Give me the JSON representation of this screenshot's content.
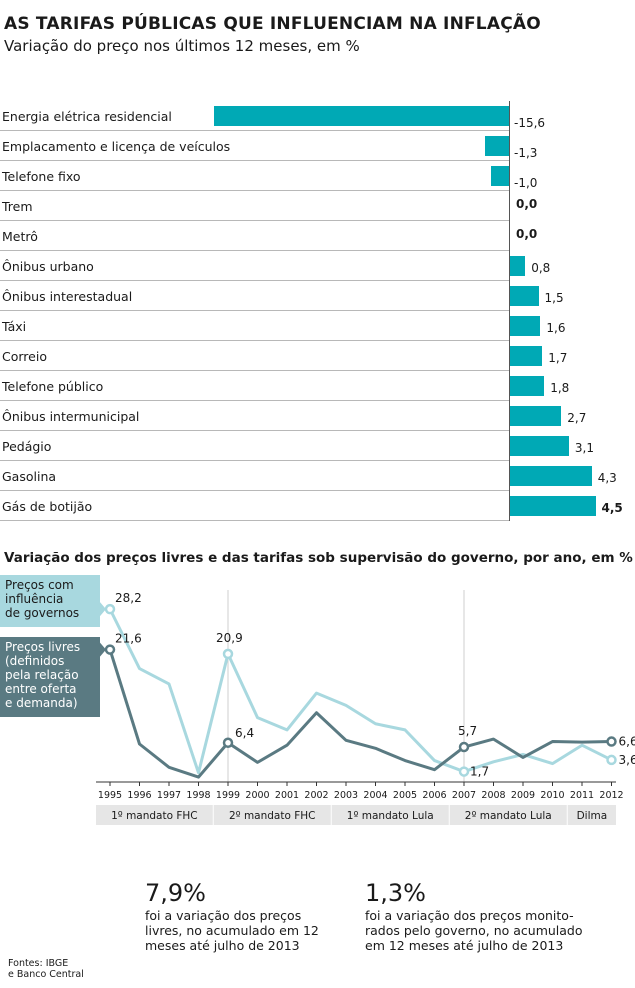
{
  "title": "AS TARIFAS PÚBLICAS QUE INFLUENCIAM NA INFLAÇÃO",
  "subtitle": "Variação do preço nos últimos 12 meses, em %",
  "chart_data": [
    {
      "type": "bar",
      "orientation": "horizontal",
      "categories": [
        "Energia elétrica residencial",
        "Emplacamento e licença de veículos",
        "Telefone fixo",
        "Trem",
        "Metrô",
        "Ônibus urbano",
        "Ônibus interestadual",
        "Táxi",
        "Correio",
        "Telefone público",
        "Ônibus intermunicipal",
        "Pedágio",
        "Gasolina",
        "Gás de botijão"
      ],
      "values": [
        -15.6,
        -1.3,
        -1.0,
        0.0,
        0.0,
        0.8,
        1.5,
        1.6,
        1.7,
        1.8,
        2.7,
        3.1,
        4.3,
        4.5
      ],
      "value_labels": [
        "-15,6",
        "-1,3",
        "-1,0",
        "0,0",
        "0,0",
        "0,8",
        "1,5",
        "1,6",
        "1,7",
        "1,8",
        "2,7",
        "3,1",
        "4,3",
        "4,5"
      ],
      "bold_labels": [
        false,
        false,
        false,
        true,
        true,
        false,
        false,
        false,
        false,
        false,
        false,
        false,
        false,
        true
      ],
      "xlim": [
        -15.6,
        4.5
      ],
      "color": "#00a9b5"
    },
    {
      "type": "line",
      "title": "Variação dos preços livres e das tarifas sob supervisão do governo, por ano, em %",
      "x": [
        "1995",
        "1996",
        "1997",
        "1998",
        "1999",
        "2000",
        "2001",
        "2002",
        "2003",
        "2004",
        "2005",
        "2006",
        "2007",
        "2008",
        "2009",
        "2010",
        "2011",
        "2012"
      ],
      "ylim": [
        0,
        30
      ],
      "series": [
        {
          "name": "Preços com influência de governos",
          "legend_lines": [
            "Preços com",
            "influência",
            "de governos"
          ],
          "color": "#a8d8df",
          "values": [
            28.2,
            18.5,
            16.0,
            1.5,
            20.9,
            10.5,
            8.5,
            14.5,
            12.5,
            9.5,
            8.5,
            3.5,
            1.7,
            3.3,
            4.5,
            3.0,
            6.0,
            3.6
          ],
          "labels": [
            {
              "x": "1995",
              "text": "28,2"
            },
            {
              "x": "1999",
              "text": "20,9"
            },
            {
              "x": "2007",
              "text": "1,7"
            },
            {
              "x": "2012",
              "text": "3,6"
            }
          ]
        },
        {
          "name": "Preços livres (definidos pela relação entre oferta e demanda)",
          "legend_lines": [
            "Preços livres",
            "(definidos",
            "pela relação",
            "entre oferta",
            "e demanda)"
          ],
          "color": "#5a7a82",
          "values": [
            21.6,
            6.2,
            2.4,
            0.8,
            6.4,
            3.2,
            6.0,
            11.3,
            6.8,
            5.5,
            3.5,
            2.0,
            5.7,
            7.0,
            4.0,
            6.6,
            6.5,
            6.6
          ],
          "labels": [
            {
              "x": "1995",
              "text": "21,6"
            },
            {
              "x": "1999",
              "text": "6,4"
            },
            {
              "x": "2007",
              "text": "5,7"
            },
            {
              "x": "2012",
              "text": "6,6"
            }
          ]
        }
      ],
      "periods": [
        {
          "label": "1º mandato FHC",
          "from": "1995",
          "to": "1998"
        },
        {
          "label": "2º mandato FHC",
          "from": "1999",
          "to": "2002"
        },
        {
          "label": "1º mandato Lula",
          "from": "2003",
          "to": "2006"
        },
        {
          "label": "2º mandato Lula",
          "from": "2007",
          "to": "2010"
        },
        {
          "label": "Dilma",
          "from": "2011",
          "to": "2012"
        }
      ]
    }
  ],
  "stats": [
    {
      "value": "7,9%",
      "lines": [
        "foi a variação dos preços",
        "livres, no acumulado em 12",
        "meses até julho de 2013"
      ]
    },
    {
      "value": "1,3%",
      "lines": [
        "foi a variação dos preços monito-",
        "rados pelo governo, no acumulado",
        "em 12 meses até julho de 2013"
      ]
    }
  ],
  "sources": [
    "Fontes: IBGE",
    "e Banco Central"
  ]
}
